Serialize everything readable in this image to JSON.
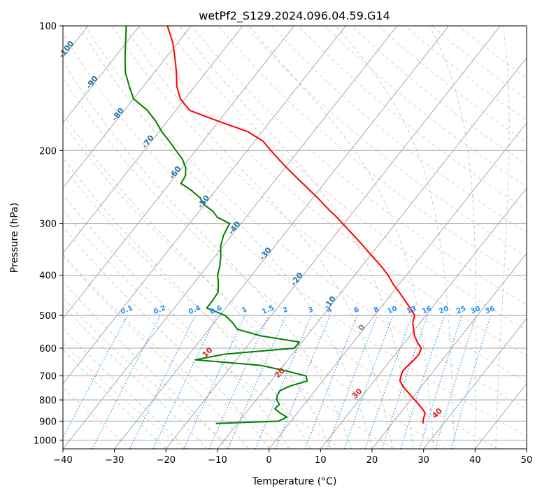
{
  "chart_data": {
    "type": "line",
    "subtype": "skew-t log-p",
    "title": "wetPf2_S129.2024.096.04.59.G14",
    "xlabel": "Temperature (°C)",
    "ylabel": "Pressure (hPa)",
    "xlim": [
      -40,
      50
    ],
    "ylim": [
      1050,
      100
    ],
    "y_scale": "log",
    "grid": true,
    "x_ticks": [
      -40,
      -30,
      -20,
      -10,
      0,
      10,
      20,
      30,
      40,
      50
    ],
    "y_ticks": [
      100,
      200,
      300,
      400,
      500,
      600,
      700,
      800,
      900,
      1000
    ],
    "colors": {
      "temperature": "#ff0000",
      "dewpoint": "#008000",
      "isotherm": "#a9a9a9",
      "dry_adiabat": "#ff7f50",
      "moist_adiabat": "#2e8b57",
      "mixing_ratio": "#1e90ff",
      "isotherm_label": "#1f6fa8",
      "adiabat_label": "#d62728"
    },
    "isotherm_labels": [
      "-100",
      "-90",
      "-80",
      "-70",
      "-60",
      "-50",
      "-40",
      "-30",
      "-20",
      "-10",
      "0"
    ],
    "dry_adiabat_labels": [
      "10",
      "20",
      "30",
      "40"
    ],
    "mixing_ratio_labels": [
      "0.1",
      "0.2",
      "0.4",
      "0.6",
      "1",
      "1.5",
      "2",
      "3",
      "4",
      "6",
      "8",
      "10",
      "13",
      "16",
      "20",
      "25",
      "30",
      "36"
    ],
    "series": [
      {
        "name": "Temperature",
        "color": "#ff0000",
        "p": [
          912,
          900,
          880,
          860,
          840,
          820,
          800,
          780,
          760,
          740,
          720,
          700,
          680,
          660,
          640,
          620,
          600,
          580,
          560,
          540,
          520,
          500,
          480,
          460,
          440,
          420,
          400,
          380,
          360,
          340,
          320,
          300,
          290,
          280,
          270,
          260,
          250,
          240,
          230,
          220,
          210,
          200,
          190,
          180,
          170,
          160,
          150,
          140,
          130,
          120,
          110,
          100
        ],
        "t": [
          26.1,
          25.6,
          25.2,
          24.8,
          23.6,
          22.2,
          20.8,
          19.3,
          17.8,
          16.3,
          15.0,
          14.4,
          14.0,
          14.2,
          14.5,
          14.6,
          14.1,
          12.4,
          10.9,
          9.7,
          8.5,
          7.8,
          5.8,
          3.6,
          1.3,
          -1.2,
          -3.5,
          -6.3,
          -9.5,
          -12.8,
          -16.4,
          -20.3,
          -22.3,
          -24.6,
          -26.8,
          -29.1,
          -31.6,
          -34.2,
          -36.9,
          -39.7,
          -42.5,
          -45.4,
          -48.3,
          -52.8,
          -60.0,
          -67.3,
          -70.9,
          -73.5,
          -75.6,
          -78.1,
          -80.9,
          -84.6
        ]
      },
      {
        "name": "Dewpoint",
        "color": "#008000",
        "p": [
          912,
          900,
          880,
          860,
          840,
          820,
          800,
          780,
          760,
          740,
          720,
          700,
          680,
          660,
          640,
          620,
          600,
          580,
          560,
          540,
          520,
          500,
          480,
          460,
          440,
          420,
          400,
          380,
          360,
          340,
          320,
          300,
          290,
          280,
          270,
          260,
          250,
          240,
          230,
          220,
          210,
          200,
          190,
          180,
          170,
          160,
          150,
          140,
          130,
          120,
          110,
          100
        ],
        "t": [
          -14.2,
          -2.4,
          -1.4,
          -3.4,
          -5.0,
          -4.8,
          -6.0,
          -6.6,
          -6.8,
          -5.5,
          -3.0,
          -4.0,
          -8.8,
          -14.5,
          -28.0,
          -23.0,
          -10.5,
          -10.5,
          -19.0,
          -24.5,
          -26.5,
          -29.0,
          -33.7,
          -33.7,
          -33.9,
          -35.1,
          -36.6,
          -37.6,
          -38.9,
          -40.5,
          -41.6,
          -42.2,
          -45.5,
          -47.4,
          -50.1,
          -51.9,
          -54.6,
          -57.8,
          -58.1,
          -59.3,
          -61.2,
          -63.8,
          -66.5,
          -69.5,
          -72.2,
          -75.5,
          -80.0,
          -82.7,
          -85.5,
          -87.8,
          -90.1,
          -92.6
        ]
      }
    ]
  }
}
